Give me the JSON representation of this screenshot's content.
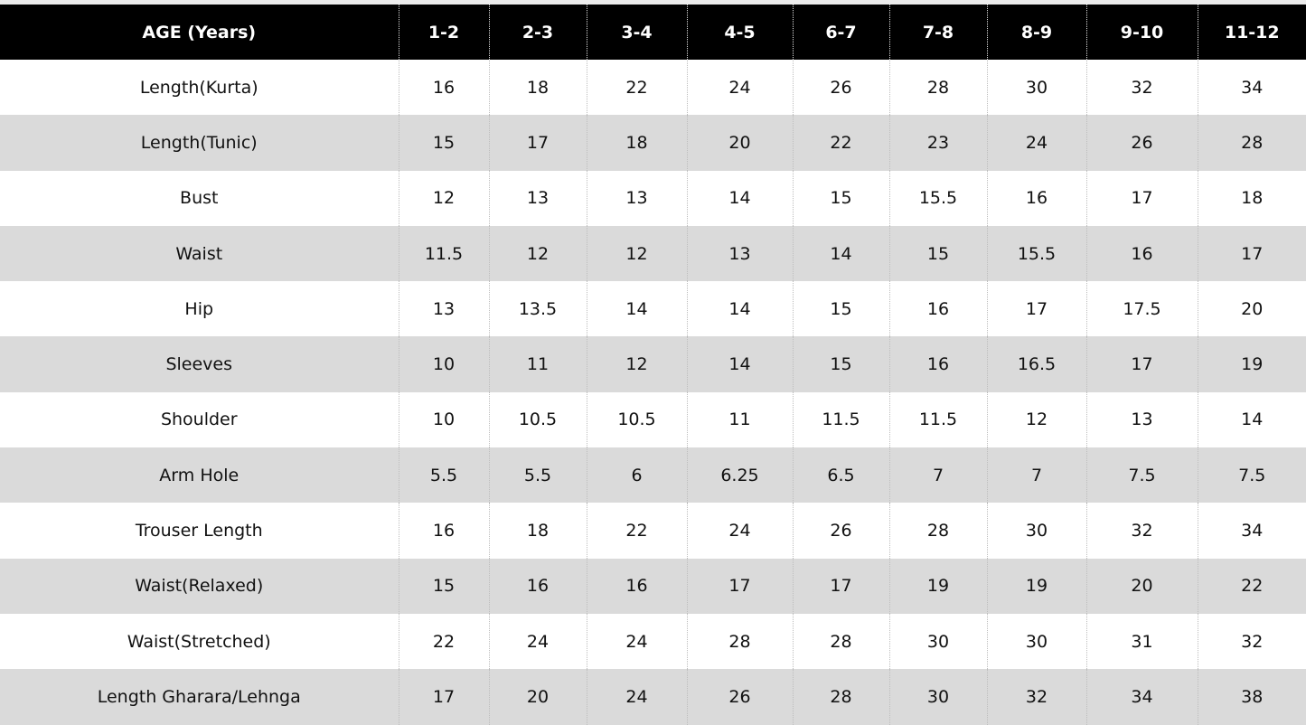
{
  "table": {
    "header_label": "AGE (Years)",
    "ages": [
      "1-2",
      "2-3",
      "3-4",
      "4-5",
      "6-7",
      "7-8",
      "8-9",
      "9-10",
      "11-12"
    ],
    "rows": [
      {
        "label": "Length(Kurta)",
        "values": [
          "16",
          "18",
          "22",
          "24",
          "26",
          "28",
          "30",
          "32",
          "34"
        ]
      },
      {
        "label": "Length(Tunic)",
        "values": [
          "15",
          "17",
          "18",
          "20",
          "22",
          "23",
          "24",
          "26",
          "28"
        ]
      },
      {
        "label": "Bust",
        "values": [
          "12",
          "13",
          "13",
          "14",
          "15",
          "15.5",
          "16",
          "17",
          "18"
        ]
      },
      {
        "label": "Waist",
        "values": [
          "11.5",
          "12",
          "12",
          "13",
          "14",
          "15",
          "15.5",
          "16",
          "17"
        ]
      },
      {
        "label": "Hip",
        "values": [
          "13",
          "13.5",
          "14",
          "14",
          "15",
          "16",
          "17",
          "17.5",
          "20"
        ]
      },
      {
        "label": "Sleeves",
        "values": [
          "10",
          "11",
          "12",
          "14",
          "15",
          "16",
          "16.5",
          "17",
          "19"
        ]
      },
      {
        "label": "Shoulder",
        "values": [
          "10",
          "10.5",
          "10.5",
          "11",
          "11.5",
          "11.5",
          "12",
          "13",
          "14"
        ]
      },
      {
        "label": "Arm Hole",
        "values": [
          "5.5",
          "5.5",
          "6",
          "6.25",
          "6.5",
          "7",
          "7",
          "7.5",
          "7.5"
        ]
      },
      {
        "label": "Trouser Length",
        "values": [
          "16",
          "18",
          "22",
          "24",
          "26",
          "28",
          "30",
          "32",
          "34"
        ]
      },
      {
        "label": "Waist(Relaxed)",
        "values": [
          "15",
          "16",
          "16",
          "17",
          "17",
          "19",
          "19",
          "20",
          "22"
        ]
      },
      {
        "label": "Waist(Stretched)",
        "values": [
          "22",
          "24",
          "24",
          "28",
          "28",
          "30",
          "30",
          "31",
          "32"
        ]
      },
      {
        "label": "Length Gharara/Lehnga",
        "values": [
          "17",
          "20",
          "24",
          "26",
          "28",
          "30",
          "32",
          "34",
          "38"
        ]
      }
    ]
  }
}
